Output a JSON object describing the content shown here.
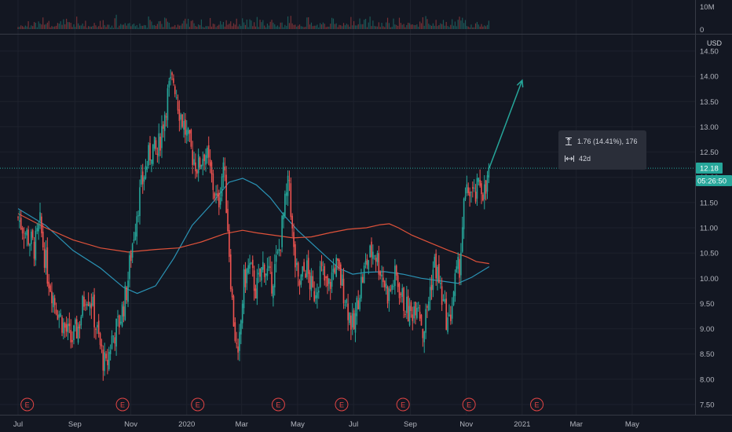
{
  "chart_data": {
    "type": "candlestick",
    "title": "",
    "currency": "USD",
    "ylim": [
      7.3,
      14.75
    ],
    "y_ticks": [
      "14.50",
      "14.00",
      "13.50",
      "13.00",
      "12.50",
      "12.00",
      "11.50",
      "11.00",
      "10.50",
      "10.00",
      "9.50",
      "9.00",
      "8.50",
      "8.00",
      "7.50"
    ],
    "y_tick_values": [
      14.5,
      14.0,
      13.5,
      13.0,
      12.5,
      12.0,
      11.5,
      11.0,
      10.5,
      10.0,
      9.5,
      9.0,
      8.5,
      8.0,
      7.5
    ],
    "x_ticks": [
      "Jul",
      "Sep",
      "Nov",
      "2020",
      "Mar",
      "May",
      "Jul",
      "Sep",
      "Nov",
      "2021",
      "Mar",
      "May"
    ],
    "x_tick_days": [
      0,
      62,
      123,
      184,
      244,
      305,
      366,
      428,
      489,
      550,
      609,
      670
    ],
    "volume_axis": [
      "10M",
      "0"
    ],
    "last_price": "12.18",
    "last_value": 12.18,
    "countdown": "05:26:50",
    "earnings_marker": "E",
    "earnings_days": [
      10,
      114,
      196,
      284,
      353,
      420,
      492,
      566
    ],
    "price_path": [
      {
        "day": 0,
        "close": 11.2
      },
      {
        "day": 10,
        "close": 10.85
      },
      {
        "day": 18,
        "close": 10.6
      },
      {
        "day": 24,
        "close": 11.05
      },
      {
        "day": 32,
        "close": 10.1
      },
      {
        "day": 40,
        "close": 9.55
      },
      {
        "day": 50,
        "close": 9.05
      },
      {
        "day": 58,
        "close": 8.75
      },
      {
        "day": 66,
        "close": 9.05
      },
      {
        "day": 74,
        "close": 9.75
      },
      {
        "day": 80,
        "close": 9.55
      },
      {
        "day": 86,
        "close": 8.95
      },
      {
        "day": 92,
        "close": 8.45
      },
      {
        "day": 96,
        "close": 8.2
      },
      {
        "day": 102,
        "close": 8.8
      },
      {
        "day": 110,
        "close": 9.1
      },
      {
        "day": 118,
        "close": 9.7
      },
      {
        "day": 124,
        "close": 10.6
      },
      {
        "day": 130,
        "close": 11.4
      },
      {
        "day": 138,
        "close": 12.1
      },
      {
        "day": 146,
        "close": 12.6
      },
      {
        "day": 152,
        "close": 12.45
      },
      {
        "day": 158,
        "close": 13.1
      },
      {
        "day": 164,
        "close": 13.7
      },
      {
        "day": 170,
        "close": 13.95
      },
      {
        "day": 176,
        "close": 13.35
      },
      {
        "day": 182,
        "close": 12.95
      },
      {
        "day": 188,
        "close": 12.55
      },
      {
        "day": 196,
        "close": 12.2
      },
      {
        "day": 204,
        "close": 12.55
      },
      {
        "day": 212,
        "close": 11.9
      },
      {
        "day": 218,
        "close": 11.4
      },
      {
        "day": 224,
        "close": 12.3
      },
      {
        "day": 228,
        "close": 11.3
      },
      {
        "day": 234,
        "close": 9.4
      },
      {
        "day": 240,
        "close": 8.3
      },
      {
        "day": 246,
        "close": 9.9
      },
      {
        "day": 252,
        "close": 10.25
      },
      {
        "day": 260,
        "close": 9.75
      },
      {
        "day": 268,
        "close": 10.3
      },
      {
        "day": 276,
        "close": 9.9
      },
      {
        "day": 284,
        "close": 10.45
      },
      {
        "day": 290,
        "close": 11.3
      },
      {
        "day": 296,
        "close": 11.95
      },
      {
        "day": 300,
        "close": 10.6
      },
      {
        "day": 306,
        "close": 9.8
      },
      {
        "day": 314,
        "close": 10.25
      },
      {
        "day": 322,
        "close": 9.65
      },
      {
        "day": 330,
        "close": 10.15
      },
      {
        "day": 338,
        "close": 9.75
      },
      {
        "day": 346,
        "close": 10.3
      },
      {
        "day": 354,
        "close": 9.85
      },
      {
        "day": 362,
        "close": 9.25
      },
      {
        "day": 366,
        "close": 8.95
      },
      {
        "day": 372,
        "close": 9.75
      },
      {
        "day": 380,
        "close": 10.3
      },
      {
        "day": 388,
        "close": 10.6
      },
      {
        "day": 396,
        "close": 10.15
      },
      {
        "day": 404,
        "close": 9.65
      },
      {
        "day": 412,
        "close": 10.05
      },
      {
        "day": 420,
        "close": 9.55
      },
      {
        "day": 428,
        "close": 9.25
      },
      {
        "day": 436,
        "close": 9.65
      },
      {
        "day": 442,
        "close": 8.9
      },
      {
        "day": 448,
        "close": 9.6
      },
      {
        "day": 454,
        "close": 10.3
      },
      {
        "day": 458,
        "close": 10.05
      },
      {
        "day": 464,
        "close": 9.45
      },
      {
        "day": 470,
        "close": 9.05
      },
      {
        "day": 476,
        "close": 9.85
      },
      {
        "day": 482,
        "close": 10.3
      },
      {
        "day": 486,
        "close": 11.35
      },
      {
        "day": 492,
        "close": 11.8
      },
      {
        "day": 498,
        "close": 11.55
      },
      {
        "day": 504,
        "close": 11.9
      },
      {
        "day": 510,
        "close": 11.65
      },
      {
        "day": 514,
        "close": 12.15
      }
    ],
    "series": [
      {
        "name": "",
        "color": "#2a93b5",
        "values": [
          {
            "day": 0,
            "value": 11.38
          },
          {
            "day": 30,
            "value": 11.05
          },
          {
            "day": 60,
            "value": 10.55
          },
          {
            "day": 90,
            "value": 10.2
          },
          {
            "day": 115,
            "value": 9.82
          },
          {
            "day": 130,
            "value": 9.7
          },
          {
            "day": 150,
            "value": 9.85
          },
          {
            "day": 170,
            "value": 10.4
          },
          {
            "day": 190,
            "value": 11.05
          },
          {
            "day": 210,
            "value": 11.45
          },
          {
            "day": 230,
            "value": 11.9
          },
          {
            "day": 245,
            "value": 11.98
          },
          {
            "day": 260,
            "value": 11.85
          },
          {
            "day": 275,
            "value": 11.6
          },
          {
            "day": 290,
            "value": 11.25
          },
          {
            "day": 305,
            "value": 10.95
          },
          {
            "day": 320,
            "value": 10.7
          },
          {
            "day": 335,
            "value": 10.45
          },
          {
            "day": 350,
            "value": 10.2
          },
          {
            "day": 365,
            "value": 10.08
          },
          {
            "day": 380,
            "value": 10.12
          },
          {
            "day": 400,
            "value": 10.13
          },
          {
            "day": 420,
            "value": 10.08
          },
          {
            "day": 440,
            "value": 10.0
          },
          {
            "day": 460,
            "value": 9.95
          },
          {
            "day": 480,
            "value": 9.9
          },
          {
            "day": 495,
            "value": 10.02
          },
          {
            "day": 514,
            "value": 10.23
          }
        ]
      },
      {
        "name": "",
        "color": "#e0523a",
        "values": [
          {
            "day": 0,
            "value": 11.28
          },
          {
            "day": 30,
            "value": 11.0
          },
          {
            "day": 60,
            "value": 10.76
          },
          {
            "day": 90,
            "value": 10.6
          },
          {
            "day": 120,
            "value": 10.52
          },
          {
            "day": 150,
            "value": 10.57
          },
          {
            "day": 175,
            "value": 10.6
          },
          {
            "day": 200,
            "value": 10.72
          },
          {
            "day": 225,
            "value": 10.88
          },
          {
            "day": 245,
            "value": 10.95
          },
          {
            "day": 260,
            "value": 10.9
          },
          {
            "day": 280,
            "value": 10.85
          },
          {
            "day": 300,
            "value": 10.8
          },
          {
            "day": 320,
            "value": 10.82
          },
          {
            "day": 340,
            "value": 10.9
          },
          {
            "day": 360,
            "value": 10.97
          },
          {
            "day": 380,
            "value": 11.0
          },
          {
            "day": 395,
            "value": 11.06
          },
          {
            "day": 405,
            "value": 11.08
          },
          {
            "day": 415,
            "value": 11.0
          },
          {
            "day": 430,
            "value": 10.85
          },
          {
            "day": 450,
            "value": 10.7
          },
          {
            "day": 470,
            "value": 10.55
          },
          {
            "day": 490,
            "value": 10.42
          },
          {
            "day": 500,
            "value": 10.33
          },
          {
            "day": 514,
            "value": 10.29
          }
        ]
      }
    ],
    "grid": true,
    "projection": {
      "from_day": 514,
      "from_value": 12.18,
      "to_day": 550,
      "to_value": 13.92
    },
    "measure": {
      "change_text": "1.76 (14.41%), 176",
      "duration_text": "42d"
    }
  }
}
